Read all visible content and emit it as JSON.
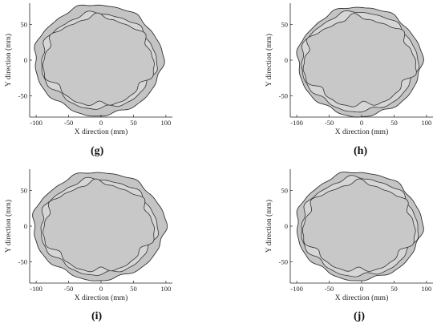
{
  "chart_data": [
    {
      "type": "scatter",
      "panel_label": "(g)",
      "xlabel": "X direction (mm)",
      "ylabel": "Y direction (mm)",
      "xlim": [
        -110,
        110
      ],
      "ylim": [
        -80,
        80
      ],
      "xticks": [
        -100,
        -50,
        0,
        50,
        100
      ],
      "yticks": [
        -50,
        0,
        50
      ],
      "series": [
        {
          "role": "outer",
          "rx": 96,
          "ry": 78,
          "cx": -4,
          "cy": 0,
          "wob": 0.02,
          "ph": 1.0
        },
        {
          "role": "mid",
          "rx": 86,
          "ry": 67,
          "cx": -4,
          "cy": -1,
          "wob": 0.03,
          "ph": 2.0
        },
        {
          "role": "inner",
          "rx": 80,
          "ry": 62,
          "cx": -4,
          "cy": -1,
          "wob": 0.045,
          "ph": 3.0
        }
      ]
    },
    {
      "type": "scatter",
      "panel_label": "(h)",
      "xlabel": "X direction (mm)",
      "ylabel": "Y direction (mm)",
      "xlim": [
        -110,
        110
      ],
      "ylim": [
        -80,
        80
      ],
      "xticks": [
        -100,
        -50,
        0,
        50,
        100
      ],
      "yticks": [
        -50,
        0,
        50
      ],
      "series": [
        {
          "role": "outer",
          "rx": 93,
          "ry": 77,
          "cx": -3,
          "cy": -2,
          "wob": 0.02,
          "ph": 0.5
        },
        {
          "role": "mid",
          "rx": 87,
          "ry": 70,
          "cx": -4,
          "cy": -2,
          "wob": 0.025,
          "ph": 1.5
        },
        {
          "role": "inner",
          "rx": 81,
          "ry": 62,
          "cx": -4,
          "cy": -2,
          "wob": 0.05,
          "ph": 2.5
        }
      ]
    },
    {
      "type": "scatter",
      "panel_label": "(i)",
      "xlabel": "X direction (mm)",
      "ylabel": "Y direction (mm)",
      "xlim": [
        -110,
        110
      ],
      "ylim": [
        -80,
        80
      ],
      "xticks": [
        -100,
        -50,
        0,
        50,
        100
      ],
      "yticks": [
        -50,
        0,
        50
      ],
      "series": [
        {
          "role": "outer",
          "rx": 99,
          "ry": 76,
          "cx": -3,
          "cy": 0,
          "wob": 0.02,
          "ph": 0.8
        },
        {
          "role": "mid",
          "rx": 87,
          "ry": 67,
          "cx": -4,
          "cy": -1,
          "wob": 0.03,
          "ph": 1.8
        },
        {
          "role": "inner",
          "rx": 80,
          "ry": 62,
          "cx": -4,
          "cy": -1,
          "wob": 0.045,
          "ph": 2.8
        }
      ]
    },
    {
      "type": "scatter",
      "panel_label": "(j)",
      "xlabel": "X direction (mm)",
      "ylabel": "Y direction (mm)",
      "xlim": [
        -110,
        110
      ],
      "ylim": [
        -80,
        80
      ],
      "xticks": [
        -100,
        -50,
        0,
        50,
        100
      ],
      "yticks": [
        -50,
        0,
        50
      ],
      "series": [
        {
          "role": "outer",
          "rx": 94,
          "ry": 76,
          "cx": -4,
          "cy": 0,
          "wob": 0.02,
          "ph": 1.2
        },
        {
          "role": "mid",
          "rx": 87,
          "ry": 69,
          "cx": -4,
          "cy": -1,
          "wob": 0.03,
          "ph": 2.2
        },
        {
          "role": "inner",
          "rx": 81,
          "ry": 62,
          "cx": -4,
          "cy": -1,
          "wob": 0.045,
          "ph": 3.2
        }
      ]
    }
  ],
  "colors": {
    "outer_fill": "#c4c4c4",
    "mid_fill": "#d6d6d6",
    "inner_fill": "#c8c8c8",
    "stroke": "#333333",
    "axis": "#222222"
  }
}
